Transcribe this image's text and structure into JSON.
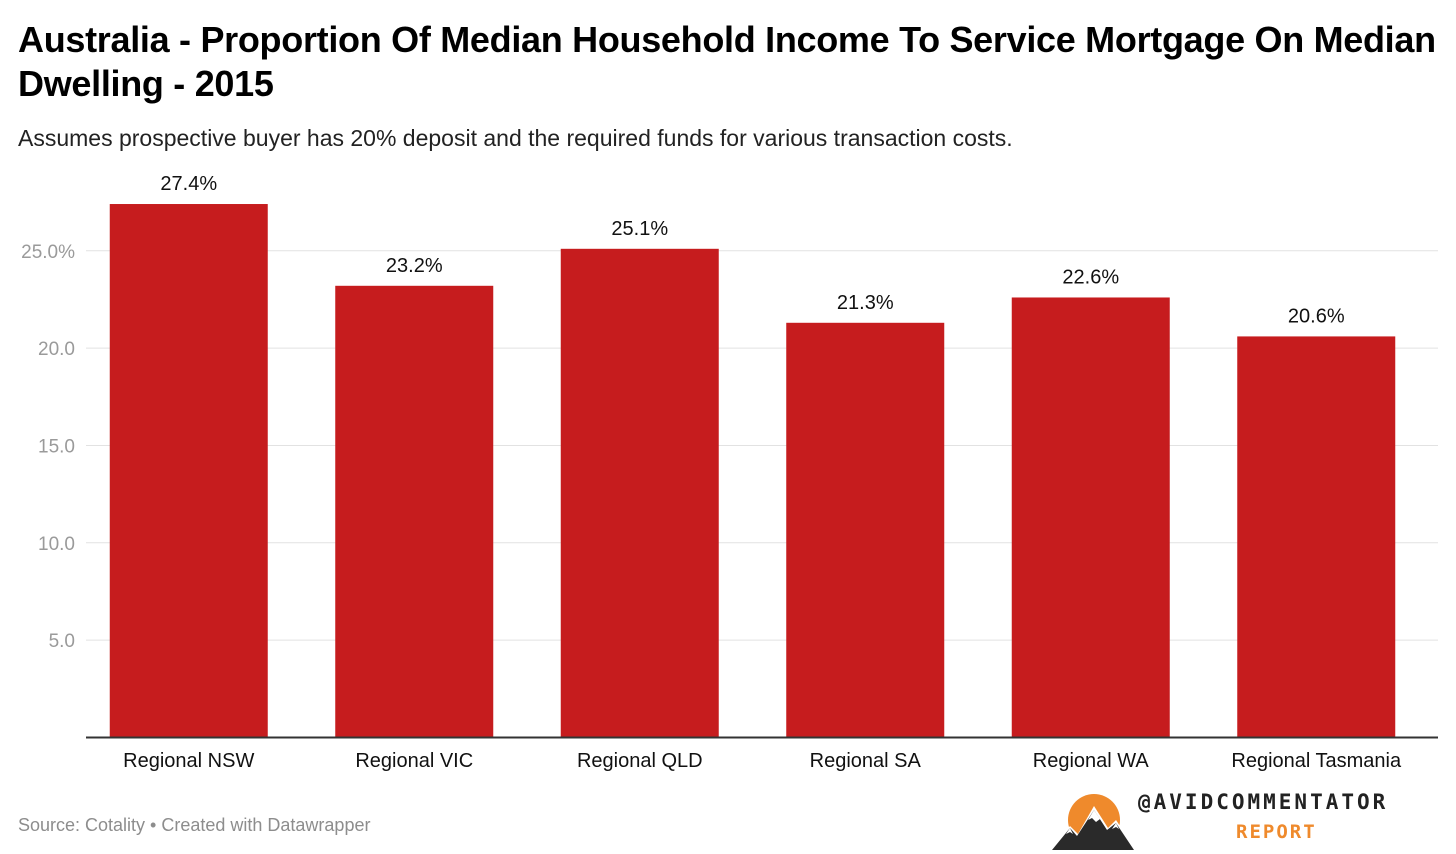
{
  "chart_data": {
    "type": "bar",
    "title": "Australia - Proportion Of Median Household Income To Service Mortgage On Median Dwelling - 2015",
    "subtitle": "Assumes prospective buyer has 20% deposit and the required funds for various transaction costs.",
    "categories": [
      "Regional NSW",
      "Regional VIC",
      "Regional QLD",
      "Regional SA",
      "Regional WA",
      "Regional Tasmania"
    ],
    "values": [
      27.4,
      23.2,
      25.1,
      21.3,
      22.6,
      20.6
    ],
    "value_labels": [
      "27.4%",
      "23.2%",
      "25.1%",
      "21.3%",
      "22.6%",
      "20.6%"
    ],
    "ylim": [
      0,
      30
    ],
    "yticks": [
      5,
      10,
      15,
      20,
      25
    ],
    "ytick_labels": [
      "5.0",
      "10.0",
      "15.0",
      "20.0",
      "25.0%"
    ],
    "xlabel": "",
    "ylabel": "",
    "grid": true,
    "bar_color": "#c61c1e"
  },
  "footer": {
    "source": "Source: Cotality • Created with Datawrapper"
  },
  "brand": {
    "handle": "@AVIDCOMMENTATOR",
    "sub": "REPORT",
    "logo_icon": "mountain-sun-icon",
    "accent": "#ef8a2c"
  }
}
